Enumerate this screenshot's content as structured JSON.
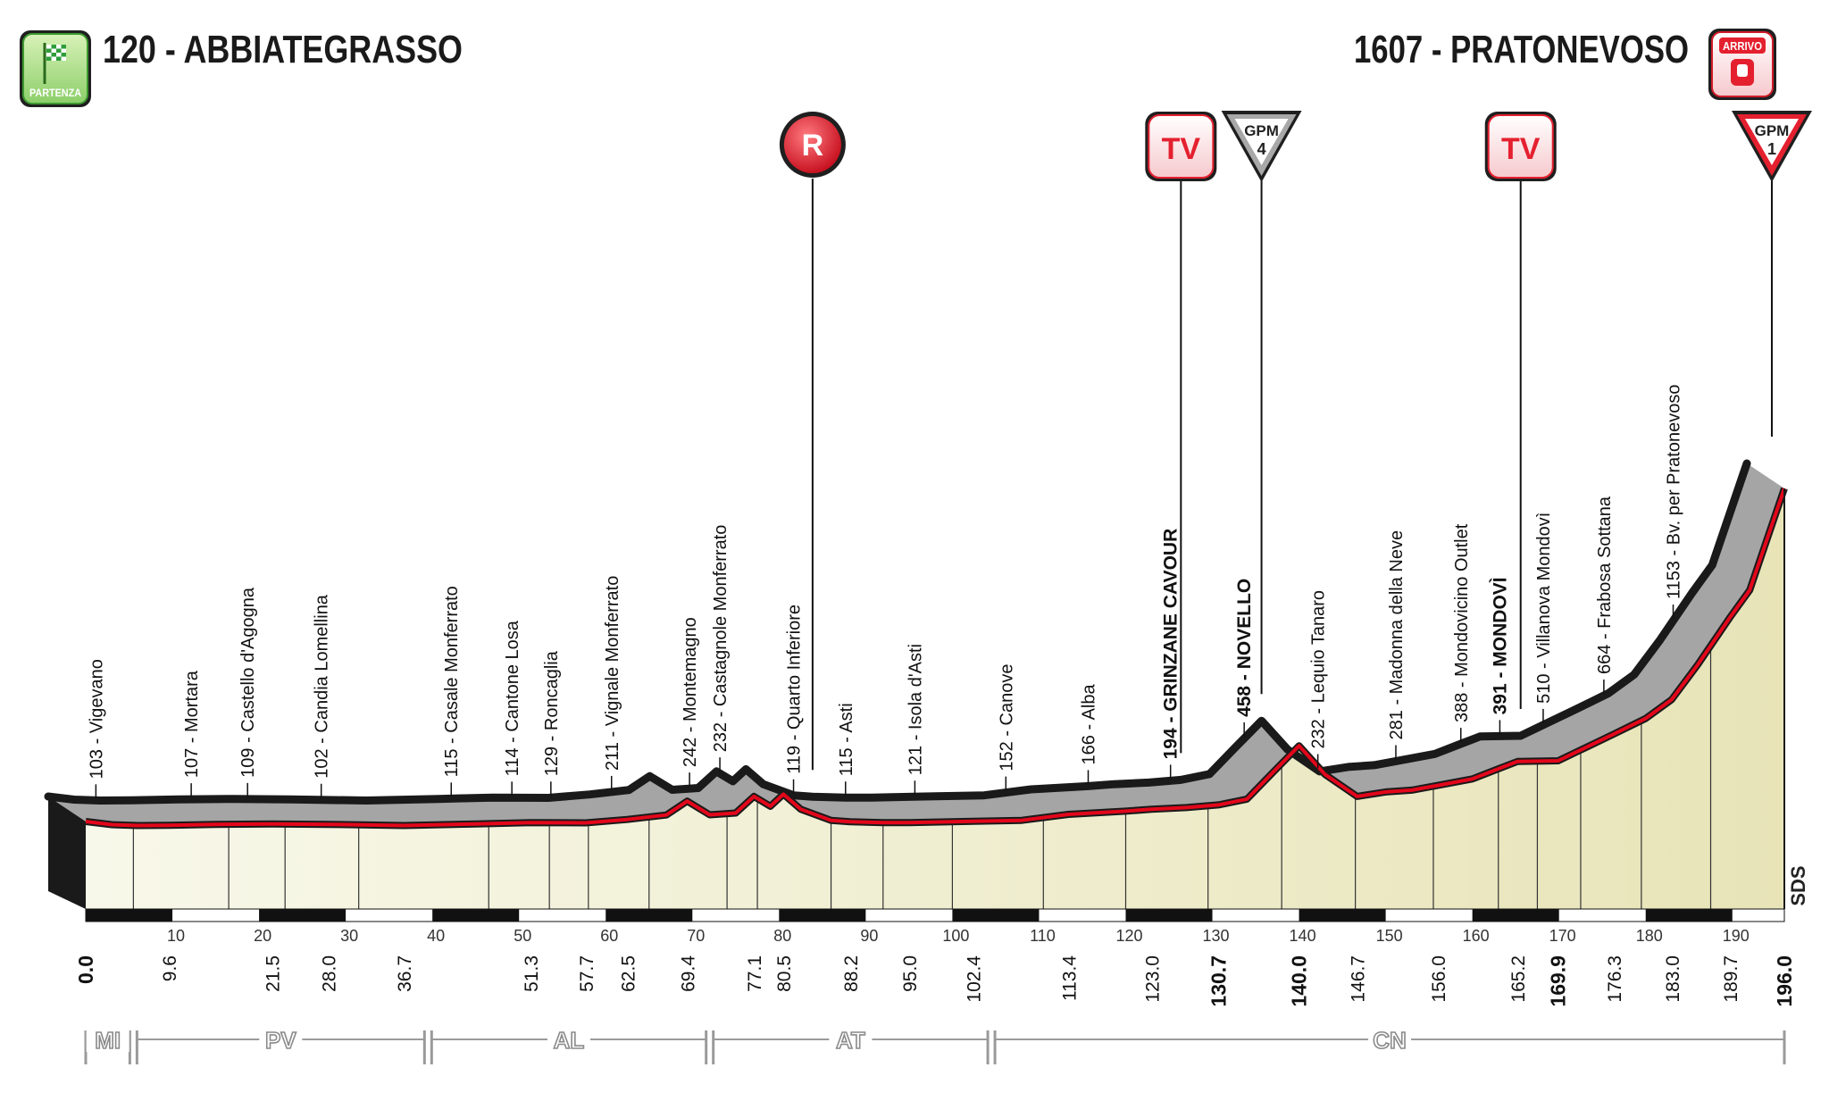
{
  "header": {
    "start_label": "120 - ABBIATEGRASSO",
    "finish_label": "1607 - PRATONEVOSO",
    "start_badge": "PARTENZA",
    "finish_badge": "ARRIVO",
    "watermark": "SDS"
  },
  "markers": [
    {
      "type": "sprint",
      "label": "R",
      "km": 88.2
    },
    {
      "type": "tv",
      "label": "TV",
      "km": 130.7
    },
    {
      "type": "gpm",
      "label": "GPM",
      "category": "4",
      "km": 140.0
    },
    {
      "type": "tv",
      "label": "TV",
      "km": 169.9
    },
    {
      "type": "gpm",
      "label": "GPM",
      "category": "1",
      "km": 196.0
    }
  ],
  "provinces": [
    {
      "label": "MI",
      "from_km": 0,
      "to_km": 5.5
    },
    {
      "label": "PV",
      "from_km": 5.5,
      "to_km": 39.5
    },
    {
      "label": "AL",
      "from_km": 39.5,
      "to_km": 72
    },
    {
      "label": "AT",
      "from_km": 72,
      "to_km": 104.5
    },
    {
      "label": "CN",
      "from_km": 104.5,
      "to_km": 196
    }
  ],
  "colors": {
    "profile_fill": "#f8f8ea",
    "climb_fill": "#e8e4b8",
    "road_red": "#e3061a",
    "road_dark": "#1a1a1a",
    "side_gray": "#a5a5a5",
    "badge_green": "#2e9d3a",
    "marker_red": "#e4202f"
  },
  "chart_data": {
    "type": "area",
    "title": "120 - ABBIATEGRASSO / 1607 - PRATONEVOSO",
    "xlabel": "",
    "ylabel": "",
    "xlim": [
      0,
      196
    ],
    "ylim": [
      0,
      1607
    ],
    "x_ticks": [
      10,
      20,
      30,
      40,
      50,
      60,
      70,
      80,
      90,
      100,
      110,
      120,
      130,
      140,
      150,
      160,
      170,
      180,
      190
    ],
    "distances": [
      "0.0",
      "9.6",
      "21.5",
      "28.0",
      "36.7",
      "51.3",
      "57.7",
      "62.5",
      "69.4",
      "77.1",
      "80.5",
      "88.2",
      "95.0",
      "102.4",
      "113.4",
      "123.0",
      "130.7",
      "140.0",
      "146.7",
      "156.0",
      "165.2",
      "169.9",
      "176.3",
      "183.0",
      "189.7",
      "196.0"
    ],
    "bold_distances": [
      "0.0",
      "130.7",
      "140.0",
      "169.9",
      "196.0"
    ],
    "profile": {
      "km": [
        0,
        3,
        6,
        9.6,
        15,
        21.5,
        28,
        36.7,
        45,
        51.3,
        57.7,
        62.5,
        67,
        69.4,
        72,
        75,
        77.1,
        79,
        80.5,
        82.5,
        86,
        88.2,
        92,
        95,
        102.4,
        108,
        113.4,
        120,
        123,
        127,
        130.7,
        134,
        137,
        140,
        143,
        146.7,
        150,
        153,
        156,
        160,
        163,
        165.2,
        169.9,
        172,
        176.3,
        180,
        183,
        186,
        189.7,
        192,
        194,
        196
      ],
      "elevation": [
        120,
        106,
        102,
        103,
        107,
        109,
        107,
        102,
        109,
        115,
        114,
        129,
        149,
        211,
        150,
        158,
        232,
        188,
        242,
        175,
        125,
        119,
        115,
        115,
        121,
        125,
        152,
        166,
        175,
        182,
        194,
        220,
        340,
        458,
        330,
        232,
        252,
        260,
        281,
        310,
        355,
        388,
        391,
        430,
        510,
        580,
        664,
        820,
        1030,
        1153,
        1380,
        1607
      ]
    },
    "places": [
      {
        "km": 5.5,
        "name": "103 - Vigevano",
        "bold": false
      },
      {
        "km": 16.5,
        "name": "107 - Mortara",
        "bold": false
      },
      {
        "km": 23,
        "name": "109 - Castello d'Agogna",
        "bold": false
      },
      {
        "km": 31.5,
        "name": "102 - Candia Lomellina",
        "bold": false
      },
      {
        "km": 46.5,
        "name": "115 - Casale Monferrato",
        "bold": false
      },
      {
        "km": 53.5,
        "name": "114 - Cantone Losa",
        "bold": false
      },
      {
        "km": 58,
        "name": "129 - Roncaglia",
        "bold": false
      },
      {
        "km": 65,
        "name": "211 - Vignale Monferrato",
        "bold": false
      },
      {
        "km": 74,
        "name": "242 - Montemagno",
        "bold": false
      },
      {
        "km": 77.5,
        "name": "232 - Castagnole Monferrato",
        "bold": false
      },
      {
        "km": 86,
        "name": "119 - Quarto Inferiore",
        "bold": false
      },
      {
        "km": 92,
        "name": "115 - Asti",
        "bold": false
      },
      {
        "km": 100,
        "name": "121 - Isola d'Asti",
        "bold": false
      },
      {
        "km": 110.5,
        "name": "152 - Canove",
        "bold": false
      },
      {
        "km": 120,
        "name": "166 - Alba",
        "bold": false
      },
      {
        "km": 129.5,
        "name": "194 - GRINZANE CAVOUR",
        "bold": true
      },
      {
        "km": 138,
        "name": "458 - NOVELLO",
        "bold": true
      },
      {
        "km": 146.5,
        "name": "232 - Lequio Tanaro",
        "bold": false
      },
      {
        "km": 155.5,
        "name": "281 - Madonna della Neve",
        "bold": false
      },
      {
        "km": 163,
        "name": "388 - Mondovicino Outlet",
        "bold": false
      },
      {
        "km": 167.5,
        "name": "391 - MONDOVÌ",
        "bold": true
      },
      {
        "km": 172.5,
        "name": "510 - Villanova Mondovì",
        "bold": false
      },
      {
        "km": 179.5,
        "name": "664 - Frabosa Sottana",
        "bold": false
      },
      {
        "km": 187.5,
        "name": "1153 - Bv. per Pratonevoso",
        "bold": false
      }
    ]
  }
}
